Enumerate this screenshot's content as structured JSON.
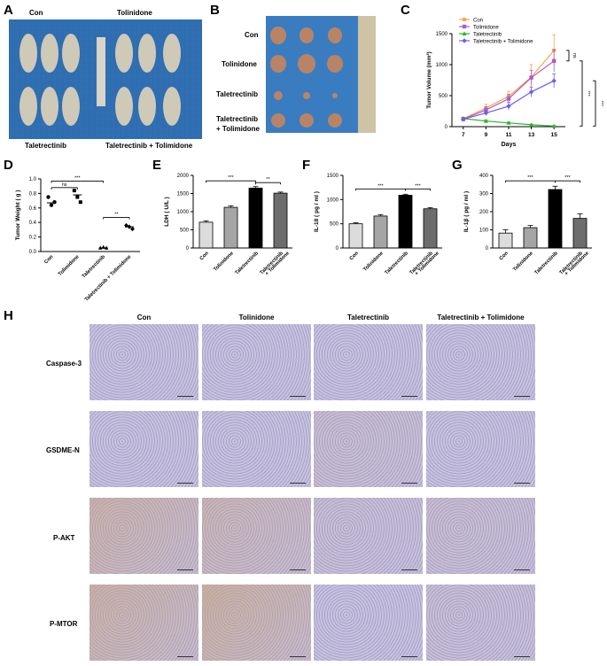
{
  "panels": {
    "A": "A",
    "B": "B",
    "C": "C",
    "D": "D",
    "E": "E",
    "F": "F",
    "G": "G",
    "H": "H"
  },
  "colors": {
    "con": "#f7a54a",
    "tolimidone": "#b05ac9",
    "taletrectinib": "#2bb52b",
    "combo": "#6b5cf0",
    "bar_con": "#dcdcdc",
    "bar_tol": "#a5a5a5",
    "bar_tal": "#000000",
    "bar_combo": "#6d6d6d",
    "photo_blue": "#3a76b8",
    "he_purple": "#b7b0d4",
    "he_brown": "#c9a27a"
  },
  "panelA": {
    "labels": [
      "Con",
      "Tolinidone",
      "Taletrectinib",
      "Taletrectinib + Tolimidone"
    ]
  },
  "panelB": {
    "groups": [
      "Con",
      "Tolinidone",
      "Taletrectinib",
      "Taletrectinib",
      "+ Tolimidone"
    ]
  },
  "chart_data": [
    {
      "id": "C",
      "type": "line",
      "xlabel": "Days",
      "ylabel": "Tumor Volume (mm³)",
      "x": [
        7,
        9,
        11,
        13,
        15
      ],
      "ylim": [
        0,
        1500
      ],
      "yticks": [
        0,
        500,
        1000,
        1500
      ],
      "series": [
        {
          "name": "Con",
          "values": [
            130,
            300,
            490,
            800,
            1230
          ],
          "err": [
            20,
            60,
            80,
            200,
            250
          ]
        },
        {
          "name": "Tolimidone",
          "values": [
            120,
            270,
            450,
            790,
            1060
          ],
          "err": [
            20,
            50,
            70,
            120,
            180
          ]
        },
        {
          "name": "Taletrectinib",
          "values": [
            130,
            90,
            60,
            30,
            10
          ],
          "err": [
            20,
            20,
            15,
            10,
            5
          ]
        },
        {
          "name": "Taletrectinib + Tolimidone",
          "values": [
            120,
            220,
            330,
            560,
            740
          ],
          "err": [
            20,
            40,
            60,
            80,
            110
          ]
        }
      ],
      "sig": [
        "ns",
        "***",
        "***"
      ]
    },
    {
      "id": "D",
      "type": "scatter",
      "ylabel": "Tumor Weight ( g )",
      "categories": [
        "Con",
        "Tolimidone",
        "Taletrectinib",
        "Taletrectinib + Tolimidone"
      ],
      "ylim": [
        0,
        1.0
      ],
      "yticks": [
        "0.0",
        "0.2",
        "0.4",
        "0.6",
        "0.8",
        "1.0"
      ],
      "points": [
        [
          0.75,
          0.64,
          0.68
        ],
        [
          0.84,
          0.75,
          0.68
        ],
        [
          0.05,
          0.06,
          0.05
        ],
        [
          0.36,
          0.34,
          0.31
        ]
      ],
      "means": [
        0.67,
        0.78,
        0.05,
        0.34
      ],
      "sig": [
        "ns",
        "***",
        "**"
      ]
    },
    {
      "id": "E",
      "type": "bar",
      "ylabel": "LDH ( U/L )",
      "categories": [
        "Con",
        "Tolinidone",
        "Taletrectinib",
        "Taletrectinib\n+ Tolimidone"
      ],
      "values": [
        710,
        1120,
        1650,
        1510
      ],
      "err": [
        40,
        40,
        40,
        30
      ],
      "ylim": [
        0,
        2000
      ],
      "yticks": [
        "0",
        "500",
        "1000",
        "1500",
        "2000"
      ],
      "sig": [
        "***",
        "**"
      ]
    },
    {
      "id": "F",
      "type": "bar",
      "ylabel": "IL-18 ( pg / ml )",
      "categories": [
        "Con",
        "Tolinidone",
        "Taletrectinib",
        "Taletrectinib\n+ Tolimidone"
      ],
      "values": [
        500,
        660,
        1090,
        810
      ],
      "err": [
        20,
        30,
        20,
        25
      ],
      "ylim": [
        0,
        1500
      ],
      "yticks": [
        "0",
        "500",
        "1000",
        "1500"
      ],
      "sig": [
        "***",
        "***"
      ]
    },
    {
      "id": "G",
      "type": "bar",
      "ylabel": "IL-1β ( pg / ml )",
      "categories": [
        "Con",
        "Tolinidone",
        "Taletrectinib",
        "Taletrectinib\n+ Tolimidone"
      ],
      "values": [
        82,
        112,
        322,
        163
      ],
      "err": [
        18,
        12,
        18,
        25
      ],
      "ylim": [
        0,
        400
      ],
      "yticks": [
        "0",
        "100",
        "200",
        "300",
        "400"
      ],
      "sig": [
        "***",
        "***"
      ]
    }
  ],
  "panelH": {
    "columns": [
      "Con",
      "Tolinidone",
      "Taletrectinib",
      "Taletrectinib + Tolimidone"
    ],
    "rows": [
      "Caspase-3",
      "GSDME-N",
      "P-AKT",
      "P-MTOR"
    ]
  }
}
